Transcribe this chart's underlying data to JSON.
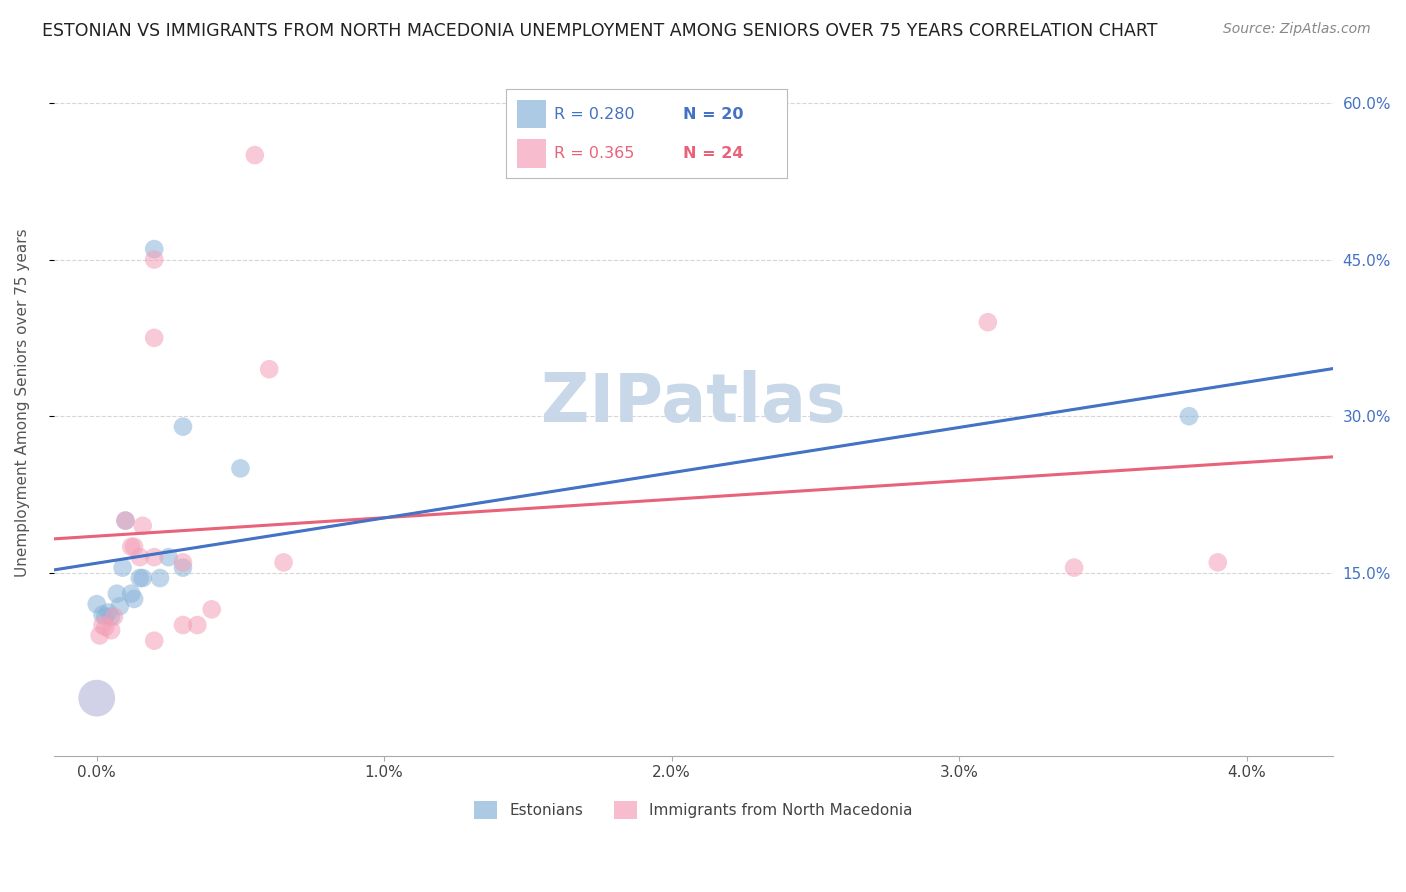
{
  "title": "ESTONIAN VS IMMIGRANTS FROM NORTH MACEDONIA UNEMPLOYMENT AMONG SENIORS OVER 75 YEARS CORRELATION CHART",
  "source": "Source: ZipAtlas.com",
  "ylabel": "Unemployment Among Seniors over 75 years",
  "right_yticklabels": [
    "15.0%",
    "30.0%",
    "45.0%",
    "60.0%"
  ],
  "right_yticks": [
    0.15,
    0.3,
    0.45,
    0.6
  ],
  "xticks": [
    0.0,
    0.01,
    0.02,
    0.03,
    0.04
  ],
  "xticklabels": [
    "0.0%",
    "1.0%",
    "2.0%",
    "3.0%",
    "4.0%"
  ],
  "xlim": [
    -0.0015,
    0.043
  ],
  "ylim": [
    -0.025,
    0.65
  ],
  "blue_color": "#8ab4d9",
  "pink_color": "#f4a0b8",
  "blue_line_color": "#4472c4",
  "pink_line_color": "#e8637a",
  "blue_scatter": [
    [
      0.0,
      0.12
    ],
    [
      0.0002,
      0.11
    ],
    [
      0.0003,
      0.108
    ],
    [
      0.0004,
      0.112
    ],
    [
      0.0005,
      0.108
    ],
    [
      0.0007,
      0.13
    ],
    [
      0.0008,
      0.118
    ],
    [
      0.0009,
      0.155
    ],
    [
      0.001,
      0.2
    ],
    [
      0.0012,
      0.13
    ],
    [
      0.0013,
      0.125
    ],
    [
      0.0015,
      0.145
    ],
    [
      0.0016,
      0.145
    ],
    [
      0.002,
      0.46
    ],
    [
      0.0022,
      0.145
    ],
    [
      0.0025,
      0.165
    ],
    [
      0.003,
      0.155
    ],
    [
      0.003,
      0.29
    ],
    [
      0.005,
      0.25
    ],
    [
      0.038,
      0.3
    ]
  ],
  "pink_scatter": [
    [
      0.0001,
      0.09
    ],
    [
      0.0002,
      0.1
    ],
    [
      0.0003,
      0.098
    ],
    [
      0.0005,
      0.095
    ],
    [
      0.0006,
      0.108
    ],
    [
      0.001,
      0.2
    ],
    [
      0.0012,
      0.175
    ],
    [
      0.0013,
      0.175
    ],
    [
      0.0015,
      0.165
    ],
    [
      0.0016,
      0.195
    ],
    [
      0.002,
      0.085
    ],
    [
      0.002,
      0.165
    ],
    [
      0.002,
      0.375
    ],
    [
      0.002,
      0.45
    ],
    [
      0.003,
      0.16
    ],
    [
      0.003,
      0.1
    ],
    [
      0.0035,
      0.1
    ],
    [
      0.004,
      0.115
    ],
    [
      0.0055,
      0.55
    ],
    [
      0.006,
      0.345
    ],
    [
      0.0065,
      0.16
    ],
    [
      0.031,
      0.39
    ],
    [
      0.034,
      0.155
    ],
    [
      0.039,
      0.16
    ]
  ],
  "blue_big_point": [
    0.0,
    0.03
  ],
  "blue_scatter_size": 180,
  "pink_scatter_size": 180,
  "big_blue_size": 700,
  "background_color": "#ffffff",
  "grid_color": "#cccccc",
  "watermark": "ZIPatlas",
  "watermark_color": "#c8d8e8",
  "title_fontsize": 12.5,
  "source_fontsize": 10,
  "ylabel_fontsize": 11,
  "tick_fontsize": 11,
  "legend_fontsize": 12
}
